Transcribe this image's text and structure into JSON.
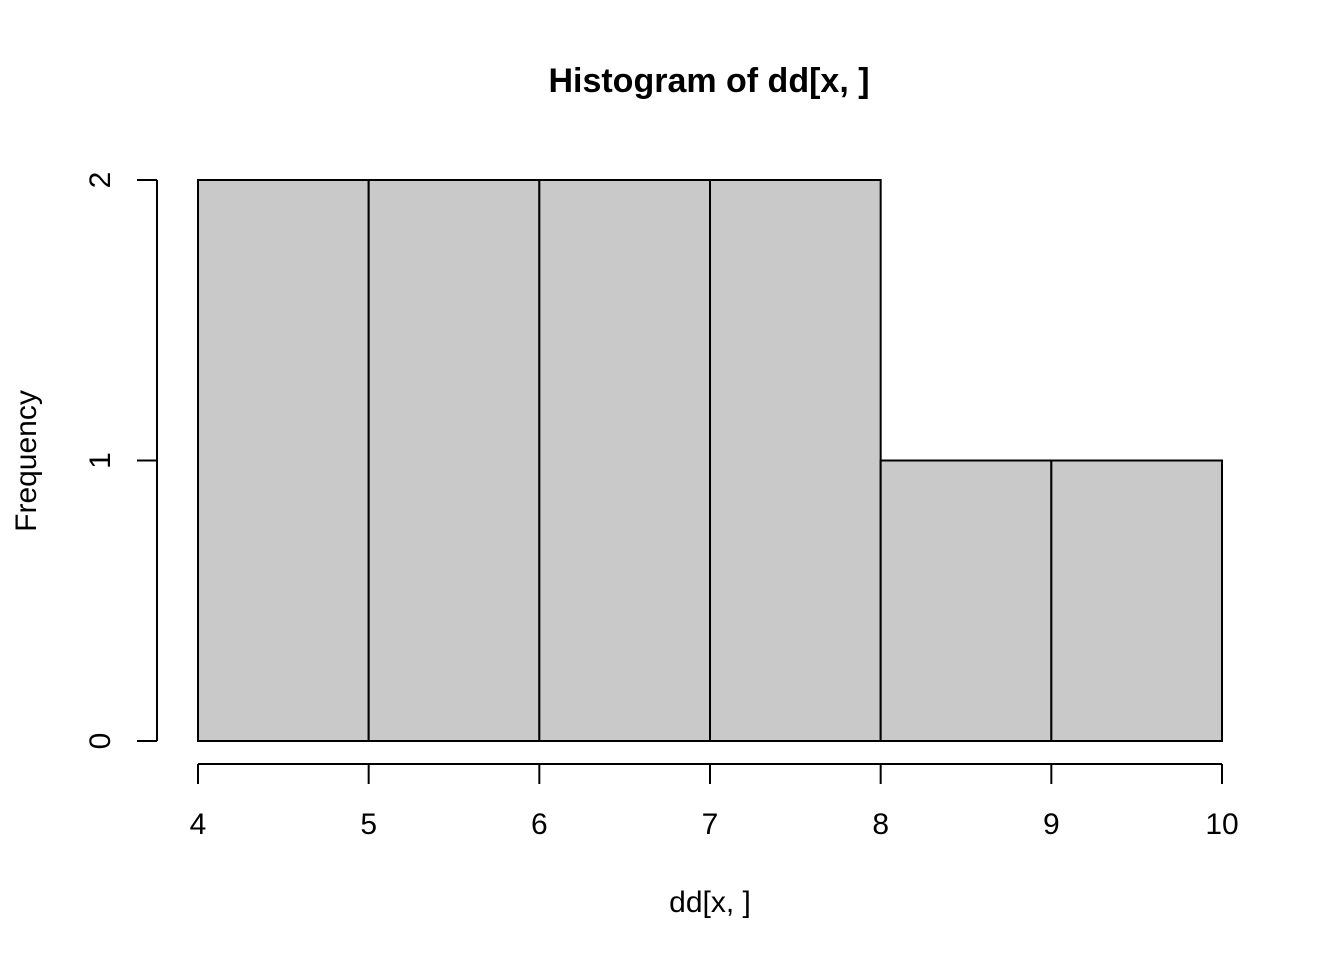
{
  "chart_data": {
    "type": "bar",
    "title": "Histogram of dd[x, ]",
    "xlabel": "dd[x, ]",
    "ylabel": "Frequency",
    "bins": [
      {
        "start": 4,
        "end": 5,
        "count": 2
      },
      {
        "start": 5,
        "end": 6,
        "count": 2
      },
      {
        "start": 6,
        "end": 7,
        "count": 2
      },
      {
        "start": 7,
        "end": 8,
        "count": 2
      },
      {
        "start": 8,
        "end": 9,
        "count": 1
      },
      {
        "start": 9,
        "end": 10,
        "count": 1
      }
    ],
    "xlim": [
      4,
      10
    ],
    "ylim": [
      0,
      2
    ],
    "x_ticks": [
      "4",
      "5",
      "6",
      "7",
      "8",
      "9",
      "10"
    ],
    "y_ticks": [
      "0",
      "1",
      "2"
    ],
    "grid": false,
    "colors": {
      "bar_fill": "#c9c9c9",
      "bar_stroke": "#000000"
    }
  }
}
